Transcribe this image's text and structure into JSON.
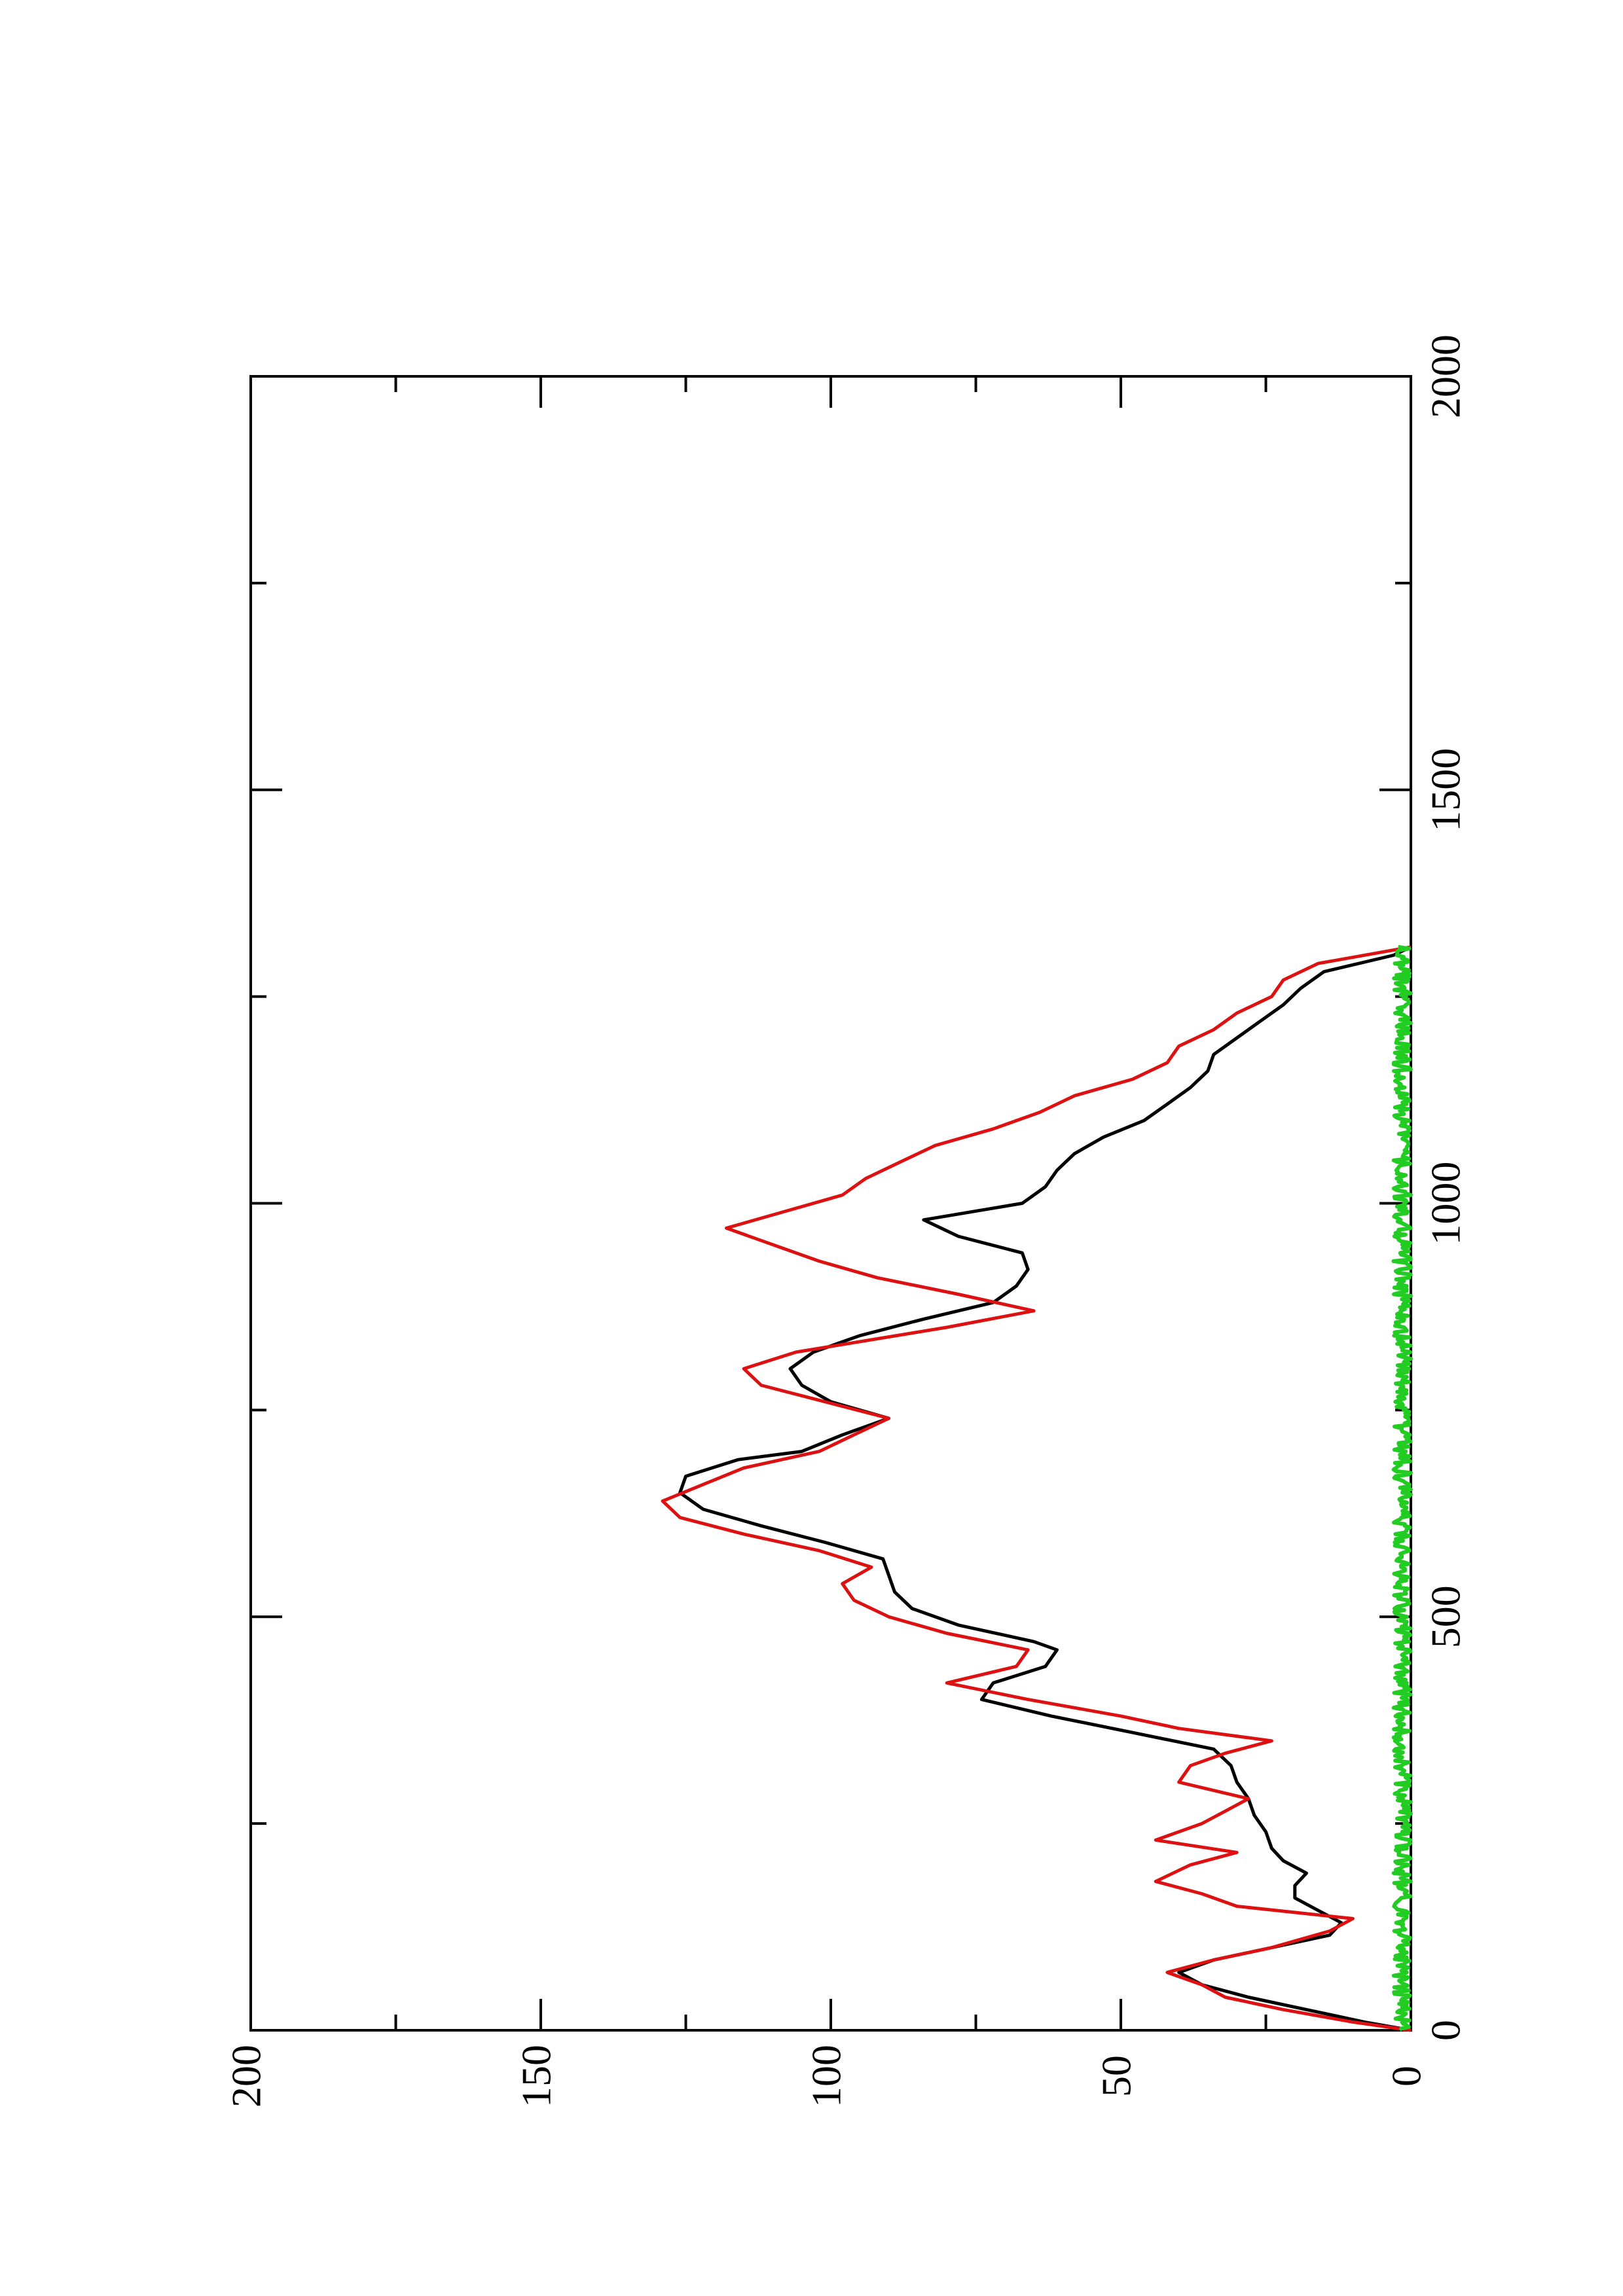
{
  "chart_data": {
    "type": "line",
    "orientation": "rotated-90-ccw",
    "title": "",
    "xlabel": "",
    "ylabel": "",
    "xlim": [
      0,
      2000
    ],
    "ylim": [
      0,
      200
    ],
    "x_ticks": [
      "0",
      "500",
      "1000",
      "1500",
      "2000"
    ],
    "y_ticks": [
      "0",
      "50",
      "100",
      "150",
      "200"
    ],
    "grid": false,
    "series": [
      {
        "color": "#000000",
        "x": [
          0,
          10,
          25,
          40,
          55,
          70,
          85,
          100,
          115,
          130,
          145,
          160,
          175,
          190,
          205,
          220,
          240,
          260,
          280,
          300,
          320,
          340,
          360,
          380,
          400,
          420,
          440,
          460,
          470,
          490,
          510,
          530,
          550,
          570,
          590,
          610,
          630,
          650,
          670,
          690,
          700,
          720,
          740,
          760,
          780,
          800,
          820,
          840,
          860,
          880,
          900,
          920,
          940,
          960,
          980,
          1000,
          1020,
          1040,
          1060,
          1080,
          1100,
          1120,
          1140,
          1160,
          1180,
          1200,
          1220,
          1240,
          1260,
          1280,
          1300,
          1310
        ],
        "y": [
          0,
          8,
          18,
          28,
          36,
          40,
          34,
          24,
          14,
          12,
          16,
          20,
          20,
          18,
          22,
          24,
          25,
          27,
          28,
          30,
          31,
          34,
          48,
          62,
          74,
          72,
          63,
          61,
          65,
          78,
          86,
          89,
          90,
          91,
          101,
          112,
          122,
          126,
          125,
          116,
          105,
          98,
          90,
          100,
          105,
          107,
          103,
          95,
          84,
          72,
          68,
          66,
          67,
          78,
          84,
          67,
          63,
          61,
          58,
          53,
          46,
          42,
          38,
          35,
          34,
          30,
          26,
          22,
          19,
          15,
          3,
          0
        ]
      },
      {
        "color": "#dd1111",
        "x": [
          0,
          10,
          25,
          40,
          55,
          70,
          85,
          100,
          120,
          135,
          150,
          165,
          180,
          200,
          215,
          230,
          250,
          265,
          280,
          300,
          320,
          335,
          350,
          365,
          380,
          400,
          420,
          440,
          460,
          480,
          500,
          520,
          540,
          560,
          580,
          600,
          620,
          640,
          660,
          680,
          700,
          720,
          740,
          760,
          780,
          800,
          820,
          850,
          870,
          890,
          910,
          930,
          950,
          970,
          990,
          1010,
          1030,
          1050,
          1070,
          1090,
          1110,
          1130,
          1150,
          1170,
          1190,
          1210,
          1230,
          1250,
          1270,
          1290,
          1310
        ],
        "y": [
          0,
          10,
          22,
          32,
          36,
          42,
          34,
          24,
          14,
          10,
          30,
          36,
          44,
          38,
          30,
          44,
          36,
          32,
          28,
          40,
          38,
          32,
          24,
          40,
          50,
          66,
          80,
          68,
          66,
          80,
          90,
          96,
          98,
          93,
          102,
          115,
          126,
          129,
          122,
          115,
          102,
          96,
          90,
          101,
          112,
          115,
          106,
          80,
          65,
          78,
          92,
          102,
          110,
          118,
          108,
          98,
          94,
          88,
          82,
          72,
          64,
          58,
          48,
          42,
          40,
          34,
          30,
          24,
          22,
          16,
          0
        ]
      },
      {
        "color": "#22cc22",
        "x": [
          0,
          1310
        ],
        "y_range": [
          0,
          3
        ]
      }
    ]
  }
}
